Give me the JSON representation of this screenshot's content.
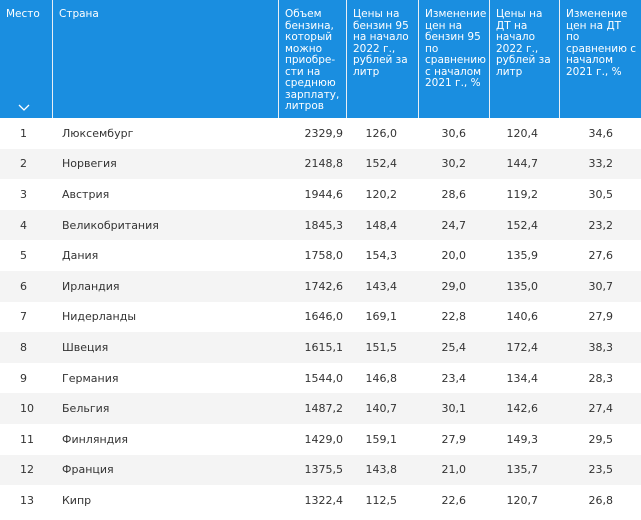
{
  "header": {
    "col_rank": "Место",
    "col_country": "Страна",
    "col_volume": "Объем бензина, который можно приобре-сти на среднюю зарплату, литров",
    "col_petrol_price": "Цены на бензин 95 на начало 2022 г., рублей за литр",
    "col_petrol_change": "Изменение цен на бензин 95 по сравнению с началом 2021 г., %",
    "col_diesel_price": "Цены на ДТ на начало 2022 г., рублей за литр",
    "col_diesel_change": "Изменение цен на ДТ по сравнению с началом 2021 г., %"
  },
  "colors": {
    "header_bg": "#1a8ee0",
    "stripe": "#f4f4f4"
  },
  "sort_icon": "chevron-down-icon",
  "rows": [
    [
      "1",
      "Люксембург",
      "2329,9",
      "126,0",
      "30,6",
      "120,4",
      "34,6"
    ],
    [
      "2",
      "Норвегия",
      "2148,8",
      "152,4",
      "30,2",
      "144,7",
      "33,2"
    ],
    [
      "3",
      "Австрия",
      "1944,6",
      "120,2",
      "28,6",
      "119,2",
      "30,5"
    ],
    [
      "4",
      "Великобритания",
      "1845,3",
      "148,4",
      "24,7",
      "152,4",
      "23,2"
    ],
    [
      "5",
      "Дания",
      "1758,0",
      "154,3",
      "20,0",
      "135,9",
      "27,6"
    ],
    [
      "6",
      "Ирландия",
      "1742,6",
      "143,4",
      "29,0",
      "135,0",
      "30,7"
    ],
    [
      "7",
      "Нидерланды",
      "1646,0",
      "169,1",
      "22,8",
      "140,6",
      "27,9"
    ],
    [
      "8",
      "Швеция",
      "1615,1",
      "151,5",
      "25,4",
      "172,4",
      "38,3"
    ],
    [
      "9",
      "Германия",
      "1544,0",
      "146,8",
      "23,4",
      "134,4",
      "28,3"
    ],
    [
      "10",
      "Бельгия",
      "1487,2",
      "140,7",
      "30,1",
      "142,6",
      "27,4"
    ],
    [
      "11",
      "Финляндия",
      "1429,0",
      "159,1",
      "27,9",
      "149,3",
      "29,5"
    ],
    [
      "12",
      "Франция",
      "1375,5",
      "143,8",
      "21,0",
      "135,7",
      "23,5"
    ],
    [
      "13",
      "Кипр",
      "1322,4",
      "112,5",
      "22,6",
      "120,7",
      "26,8"
    ]
  ]
}
